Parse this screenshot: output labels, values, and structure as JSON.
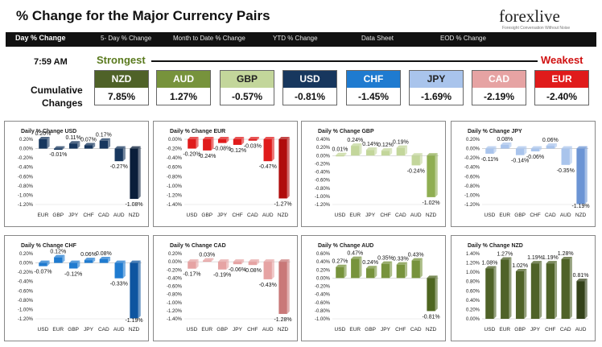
{
  "header": {
    "title": "% Change for the Major Currency Pairs",
    "logo_text": "forexlive",
    "logo_sub": "Foresight Conversation Without Noise"
  },
  "tabs": [
    {
      "label": "Day % Change",
      "active": true
    },
    {
      "label": "5- Day % Change",
      "active": false
    },
    {
      "label": "Month to Date % Change",
      "active": false
    },
    {
      "label": "YTD % Change",
      "active": false
    },
    {
      "label": "Data Sheet",
      "active": false
    },
    {
      "label": "EOD % Change",
      "active": false
    }
  ],
  "summary": {
    "time": "7:59 AM",
    "strongest_label": "Strongest",
    "weakest_label": "Weakest",
    "cumulative_label_1": "Cumulative",
    "cumulative_label_2": "Changes",
    "ranking": [
      {
        "code": "NZD",
        "value": "7.85%",
        "color": "#4f6228",
        "text_color": "#ffffff"
      },
      {
        "code": "AUD",
        "value": "1.27%",
        "color": "#77933c",
        "text_color": "#ffffff"
      },
      {
        "code": "GBP",
        "value": "-0.57%",
        "color": "#c3d69b",
        "text_color": "#222222"
      },
      {
        "code": "USD",
        "value": "-0.81%",
        "color": "#17375e",
        "text_color": "#ffffff"
      },
      {
        "code": "CHF",
        "value": "-1.45%",
        "color": "#1f7bd0",
        "text_color": "#ffffff"
      },
      {
        "code": "JPY",
        "value": "-1.69%",
        "color": "#a9c4ec",
        "text_color": "#222222"
      },
      {
        "code": "CAD",
        "value": "-2.19%",
        "color": "#e6a3a3",
        "text_color": "#ffffff"
      },
      {
        "code": "EUR",
        "value": "-2.40%",
        "color": "#e01b1b",
        "text_color": "#ffffff"
      }
    ]
  },
  "chart_data": [
    {
      "type": "bar",
      "title": "Daily % Change USD",
      "categories": [
        "EUR",
        "GBP",
        "JPY",
        "CHF",
        "CAD",
        "AUD",
        "NZD"
      ],
      "values": [
        0.2,
        -0.01,
        0.11,
        0.07,
        0.17,
        -0.27,
        -1.08
      ],
      "labels": [
        "0.20%",
        "-0.01%",
        "0.11%",
        "0.07%",
        "0.17%",
        "-0.27%",
        "-1.08%"
      ],
      "ylim": [
        -1.2,
        0.2
      ],
      "ticks": [
        "0.20%",
        "0.00%",
        "-0.20%",
        "-0.40%",
        "-0.60%",
        "-0.80%",
        "-1.00%",
        "-1.20%"
      ],
      "color": "#17375e",
      "highlight_color": "#0a1e3a"
    },
    {
      "type": "bar",
      "title": "Daily % Change EUR",
      "categories": [
        "USD",
        "GBP",
        "JPY",
        "CHF",
        "CAD",
        "AUD",
        "NZD"
      ],
      "values": [
        -0.2,
        -0.24,
        -0.08,
        -0.12,
        -0.03,
        -0.47,
        -1.27
      ],
      "labels": [
        "-0.20%",
        "-0.24%",
        "-0.08%",
        "-0.12%",
        "-0.03%",
        "-0.47%",
        "-1.27%"
      ],
      "ylim": [
        -1.4,
        0.0
      ],
      "ticks": [
        "0.00%",
        "-0.20%",
        "-0.40%",
        "-0.60%",
        "-0.80%",
        "-1.00%",
        "-1.20%",
        "-1.40%"
      ],
      "color": "#e01b1b",
      "highlight_color": "#b00c0c"
    },
    {
      "type": "bar",
      "title": "Daily % Change GBP",
      "categories": [
        "USD",
        "EUR",
        "JPY",
        "CHF",
        "CAD",
        "AUD",
        "NZD"
      ],
      "values": [
        0.01,
        0.24,
        0.14,
        0.12,
        0.19,
        -0.24,
        -1.02
      ],
      "labels": [
        "0.01%",
        "0.24%",
        "0.14%",
        "0.12%",
        "0.19%",
        "-0.24%",
        "-1.02%"
      ],
      "ylim": [
        -1.2,
        0.4
      ],
      "ticks": [
        "0.40%",
        "0.20%",
        "0.00%",
        "-0.20%",
        "-0.40%",
        "-0.60%",
        "-0.80%",
        "-1.00%",
        "-1.20%"
      ],
      "color": "#c3d69b",
      "highlight_color": "#8fae52"
    },
    {
      "type": "bar",
      "title": "Daily % Change JPY",
      "categories": [
        "USD",
        "EUR",
        "GBP",
        "CHF",
        "CAD",
        "AUD",
        "NZD"
      ],
      "values": [
        -0.11,
        0.08,
        -0.14,
        -0.06,
        0.06,
        -0.35,
        -1.19
      ],
      "labels": [
        "-0.11%",
        "0.08%",
        "-0.14%",
        "-0.06%",
        "0.06%",
        "-0.35%",
        "-1.19%"
      ],
      "ylim": [
        -1.2,
        0.2
      ],
      "ticks": [
        "0.20%",
        "0.00%",
        "-0.20%",
        "-0.40%",
        "-0.60%",
        "-0.80%",
        "-1.00%",
        "-1.20%"
      ],
      "color": "#a9c4ec",
      "highlight_color": "#6b94d4"
    },
    {
      "type": "bar",
      "title": "Daily % Change CHF",
      "categories": [
        "USD",
        "EUR",
        "GBP",
        "JPY",
        "CAD",
        "AUD",
        "NZD"
      ],
      "values": [
        -0.07,
        0.12,
        -0.12,
        0.06,
        0.08,
        -0.33,
        -1.19
      ],
      "labels": [
        "-0.07%",
        "0.12%",
        "-0.12%",
        "0.06%",
        "0.08%",
        "-0.33%",
        "-1.19%"
      ],
      "ylim": [
        -1.2,
        0.2
      ],
      "ticks": [
        "0.20%",
        "0.00%",
        "-0.20%",
        "-0.40%",
        "-0.60%",
        "-0.80%",
        "-1.00%",
        "-1.20%"
      ],
      "color": "#1f7bd0",
      "highlight_color": "#0e55a0"
    },
    {
      "type": "bar",
      "title": "Daily % Change CAD",
      "categories": [
        "USD",
        "EUR",
        "GBP",
        "JPY",
        "CHF",
        "AUD",
        "NZD"
      ],
      "values": [
        -0.17,
        0.03,
        -0.19,
        -0.06,
        -0.08,
        -0.43,
        -1.28
      ],
      "labels": [
        "-0.17%",
        "0.03%",
        "-0.19%",
        "-0.06%",
        "-0.08%",
        "-0.43%",
        "-1.28%"
      ],
      "ylim": [
        -1.4,
        0.2
      ],
      "ticks": [
        "0.20%",
        "0.00%",
        "-0.20%",
        "-0.40%",
        "-0.60%",
        "-0.80%",
        "-1.00%",
        "-1.20%",
        "-1.40%"
      ],
      "color": "#e6a3a3",
      "highlight_color": "#c97878"
    },
    {
      "type": "bar",
      "title": "Daily % Change AUD",
      "categories": [
        "USD",
        "EUR",
        "GBP",
        "JPY",
        "CHF",
        "CAD",
        "NZD"
      ],
      "values": [
        0.27,
        0.47,
        0.24,
        0.35,
        0.33,
        0.43,
        -0.81
      ],
      "labels": [
        "0.27%",
        "0.47%",
        "0.24%",
        "0.35%",
        "0.33%",
        "0.43%",
        "-0.81%"
      ],
      "ylim": [
        -1.0,
        0.6
      ],
      "ticks": [
        "0.60%",
        "0.40%",
        "0.20%",
        "0.00%",
        "-0.20%",
        "-0.40%",
        "-0.60%",
        "-0.80%",
        "-1.00%"
      ],
      "color": "#77933c",
      "highlight_color": "#4e6620"
    },
    {
      "type": "bar",
      "title": "Daily % Change NZD",
      "categories": [
        "USD",
        "EUR",
        "GBP",
        "JPY",
        "CHF",
        "CAD",
        "AUD"
      ],
      "values": [
        1.08,
        1.27,
        1.02,
        1.19,
        1.19,
        1.28,
        0.81
      ],
      "labels": [
        "1.08%",
        "1.27%",
        "1.02%",
        "1.19%",
        "1.19%",
        "1.28%",
        "0.81%"
      ],
      "ylim": [
        0.0,
        1.4
      ],
      "ticks": [
        "1.40%",
        "1.20%",
        "1.00%",
        "0.80%",
        "0.60%",
        "0.40%",
        "0.20%",
        "0.00%"
      ],
      "color": "#4f6228",
      "highlight_color": "#34421a"
    }
  ]
}
